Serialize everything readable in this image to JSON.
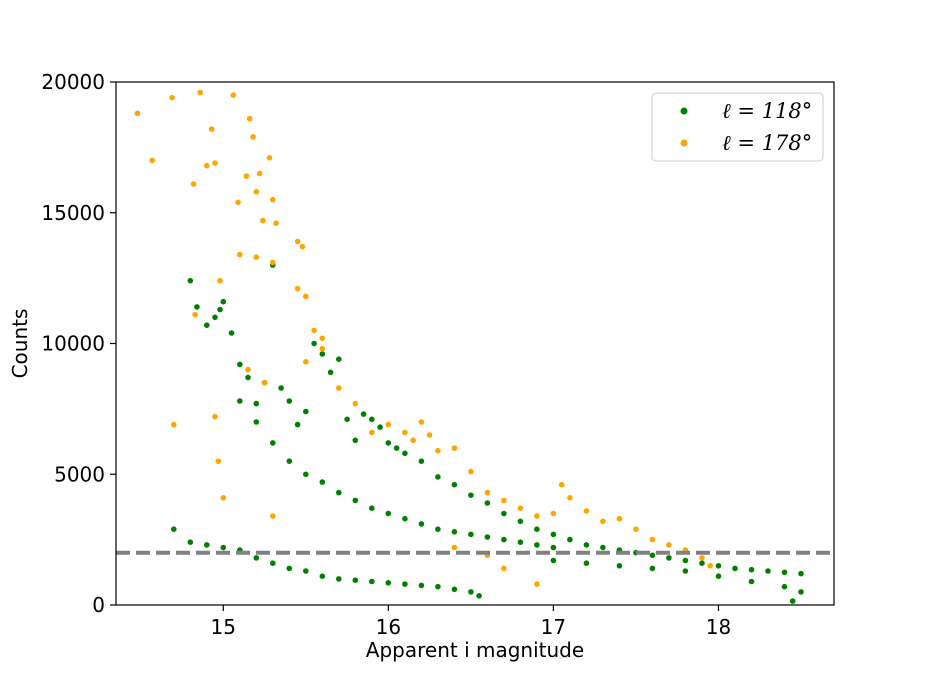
{
  "chart_data": {
    "type": "scatter",
    "title": "",
    "xlabel": "Apparent i magnitude",
    "ylabel": "Counts",
    "xlim": [
      14.35,
      18.7
    ],
    "ylim": [
      0,
      20000
    ],
    "x_ticks": [
      15,
      16,
      17,
      18
    ],
    "y_ticks": [
      0,
      5000,
      10000,
      15000,
      20000
    ],
    "grid": false,
    "legend_position": "top-right",
    "reference_line": {
      "y": 2000,
      "style": "dashed",
      "color": "#808080"
    },
    "series": [
      {
        "name": "ℓ = 118°",
        "color": "#008000",
        "points": [
          [
            14.8,
            12400
          ],
          [
            14.84,
            11400
          ],
          [
            14.9,
            10700
          ],
          [
            14.95,
            11000
          ],
          [
            14.98,
            11300
          ],
          [
            15.0,
            11600
          ],
          [
            15.05,
            10400
          ],
          [
            15.1,
            9200
          ],
          [
            15.15,
            8700
          ],
          [
            15.2,
            7700
          ],
          [
            15.25,
            8500
          ],
          [
            15.3,
            13000
          ],
          [
            15.35,
            8300
          ],
          [
            15.4,
            7800
          ],
          [
            15.45,
            6900
          ],
          [
            15.5,
            7400
          ],
          [
            15.55,
            10000
          ],
          [
            15.6,
            9600
          ],
          [
            15.65,
            8900
          ],
          [
            15.7,
            9400
          ],
          [
            15.75,
            7100
          ],
          [
            15.8,
            6300
          ],
          [
            15.85,
            7300
          ],
          [
            15.9,
            7100
          ],
          [
            15.95,
            6800
          ],
          [
            16.0,
            6200
          ],
          [
            16.05,
            6000
          ],
          [
            16.1,
            5800
          ],
          [
            16.2,
            5500
          ],
          [
            16.3,
            4900
          ],
          [
            16.4,
            4600
          ],
          [
            16.5,
            4200
          ],
          [
            16.6,
            3900
          ],
          [
            16.7,
            3500
          ],
          [
            16.8,
            3200
          ],
          [
            16.9,
            2900
          ],
          [
            17.0,
            2700
          ],
          [
            17.1,
            2500
          ],
          [
            17.2,
            2300
          ],
          [
            17.3,
            2200
          ],
          [
            17.4,
            2100
          ],
          [
            17.5,
            2000
          ],
          [
            17.6,
            1900
          ],
          [
            17.7,
            1800
          ],
          [
            17.8,
            1700
          ],
          [
            17.9,
            1600
          ],
          [
            18.0,
            1500
          ],
          [
            18.1,
            1400
          ],
          [
            18.2,
            1350
          ],
          [
            18.3,
            1300
          ],
          [
            18.4,
            1250
          ],
          [
            18.5,
            1200
          ],
          [
            15.1,
            7800
          ],
          [
            15.2,
            7000
          ],
          [
            15.3,
            6200
          ],
          [
            15.4,
            5500
          ],
          [
            15.5,
            5000
          ],
          [
            15.6,
            4700
          ],
          [
            15.7,
            4300
          ],
          [
            15.8,
            4000
          ],
          [
            15.9,
            3700
          ],
          [
            16.0,
            3500
          ],
          [
            16.1,
            3300
          ],
          [
            16.2,
            3100
          ],
          [
            16.3,
            2900
          ],
          [
            16.4,
            2800
          ],
          [
            16.5,
            2700
          ],
          [
            16.6,
            2600
          ],
          [
            16.7,
            2500
          ],
          [
            16.8,
            2400
          ],
          [
            16.9,
            2300
          ],
          [
            17.0,
            2200
          ],
          [
            14.7,
            2900
          ],
          [
            14.8,
            2400
          ],
          [
            14.9,
            2300
          ],
          [
            15.0,
            2200
          ],
          [
            15.1,
            2100
          ],
          [
            15.2,
            1800
          ],
          [
            15.3,
            1600
          ],
          [
            15.4,
            1400
          ],
          [
            15.5,
            1300
          ],
          [
            15.6,
            1100
          ],
          [
            15.7,
            1000
          ],
          [
            15.8,
            950
          ],
          [
            15.9,
            900
          ],
          [
            16.0,
            850
          ],
          [
            16.1,
            800
          ],
          [
            16.2,
            750
          ],
          [
            16.3,
            700
          ],
          [
            16.4,
            600
          ],
          [
            16.5,
            500
          ],
          [
            16.55,
            350
          ],
          [
            17.0,
            1700
          ],
          [
            17.2,
            1600
          ],
          [
            17.4,
            1500
          ],
          [
            17.6,
            1400
          ],
          [
            17.8,
            1300
          ],
          [
            18.0,
            1100
          ],
          [
            18.2,
            900
          ],
          [
            18.4,
            700
          ],
          [
            18.5,
            500
          ],
          [
            18.45,
            150
          ]
        ]
      },
      {
        "name": "ℓ = 178°",
        "color": "#ffa500",
        "points": [
          [
            14.48,
            18800
          ],
          [
            14.57,
            17000
          ],
          [
            14.69,
            19400
          ],
          [
            14.82,
            16100
          ],
          [
            14.86,
            19600
          ],
          [
            14.9,
            16800
          ],
          [
            14.93,
            18200
          ],
          [
            14.95,
            16900
          ],
          [
            14.98,
            12400
          ],
          [
            15.06,
            19500
          ],
          [
            15.09,
            15400
          ],
          [
            15.14,
            16400
          ],
          [
            15.16,
            18600
          ],
          [
            15.18,
            17900
          ],
          [
            15.2,
            15800
          ],
          [
            15.24,
            14700
          ],
          [
            15.28,
            17100
          ],
          [
            15.3,
            15500
          ],
          [
            15.32,
            14600
          ],
          [
            15.22,
            16500
          ],
          [
            15.45,
            13900
          ],
          [
            15.48,
            13700
          ],
          [
            15.45,
            12100
          ],
          [
            15.5,
            11800
          ],
          [
            15.55,
            10500
          ],
          [
            15.6,
            10200
          ],
          [
            14.7,
            6900
          ],
          [
            14.83,
            11100
          ],
          [
            14.95,
            7200
          ],
          [
            14.97,
            5500
          ],
          [
            15.0,
            4100
          ],
          [
            15.1,
            13400
          ],
          [
            15.2,
            13300
          ],
          [
            15.3,
            13100
          ],
          [
            15.15,
            9000
          ],
          [
            15.25,
            8500
          ],
          [
            15.3,
            3400
          ],
          [
            15.5,
            9300
          ],
          [
            15.6,
            9800
          ],
          [
            15.7,
            8300
          ],
          [
            15.8,
            7700
          ],
          [
            15.9,
            6600
          ],
          [
            16.0,
            6900
          ],
          [
            16.1,
            6600
          ],
          [
            16.15,
            6300
          ],
          [
            16.2,
            7000
          ],
          [
            16.25,
            6500
          ],
          [
            16.3,
            5900
          ],
          [
            16.4,
            6000
          ],
          [
            16.5,
            5100
          ],
          [
            16.6,
            4300
          ],
          [
            16.7,
            4000
          ],
          [
            16.8,
            3700
          ],
          [
            16.9,
            3400
          ],
          [
            17.0,
            3500
          ],
          [
            17.05,
            4600
          ],
          [
            17.1,
            4100
          ],
          [
            17.2,
            3600
          ],
          [
            17.3,
            3200
          ],
          [
            17.4,
            3300
          ],
          [
            17.5,
            2900
          ],
          [
            17.6,
            2500
          ],
          [
            17.7,
            2300
          ],
          [
            17.8,
            2100
          ],
          [
            17.9,
            1800
          ],
          [
            17.95,
            1500
          ],
          [
            16.9,
            800
          ],
          [
            16.7,
            1400
          ],
          [
            16.6,
            1900
          ],
          [
            16.4,
            2200
          ]
        ]
      }
    ]
  }
}
